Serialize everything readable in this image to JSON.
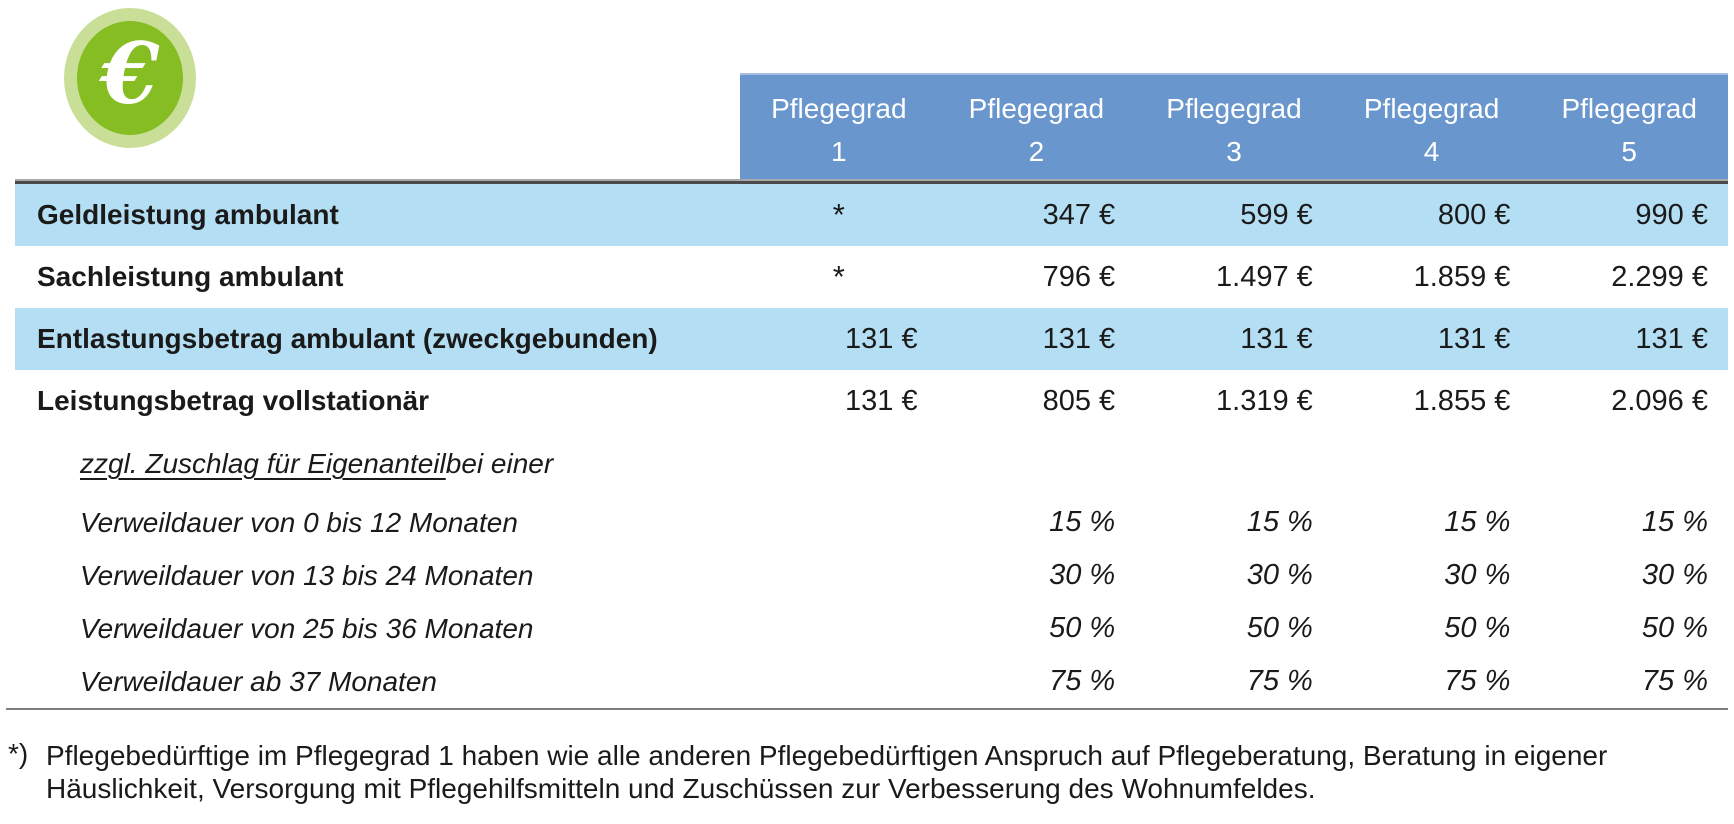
{
  "colors": {
    "header_bg": "#6996CD",
    "header_top_edge": "#A5C0E0",
    "row_highlight": "#B4DEF3",
    "divider_dark": "#4A4A4A",
    "divider_light": "#A8A8A8",
    "bottom_rule": "#7F7F7F",
    "text": "#1A1A1A",
    "header_text": "#FFFFFF",
    "icon_outer_green": "#C9DF97",
    "icon_inner_green": "#85BD22",
    "icon_symbol_color": "#FFFFFF"
  },
  "icon": {
    "symbol": "€"
  },
  "header": {
    "cells": [
      {
        "title": "Pflegegrad",
        "number": "1"
      },
      {
        "title": "Pflegegrad",
        "number": "2"
      },
      {
        "title": "Pflegegrad",
        "number": "3"
      },
      {
        "title": "Pflegegrad",
        "number": "4"
      },
      {
        "title": "Pflegegrad",
        "number": "5"
      }
    ]
  },
  "table": {
    "rows": [
      {
        "label": "Geldleistung ambulant",
        "values": [
          "*",
          "347 €",
          "599 €",
          "800 €",
          "990 €"
        ]
      },
      {
        "label": "Sachleistung ambulant",
        "values": [
          "*",
          "796 €",
          "1.497 €",
          "1.859 €",
          "2.299 €"
        ]
      },
      {
        "label": "Entlastungsbetrag ambulant (zweckgebunden)",
        "values": [
          "131 €",
          "131 €",
          "131 €",
          "131 €",
          "131 €"
        ]
      },
      {
        "label": "Leistungsbetrag vollstationär",
        "values": [
          "131 €",
          "805 €",
          "1.319 €",
          "1.855 €",
          "2.096 €"
        ]
      },
      {
        "label_underline": "zzgl. Zuschlag für Eigenanteil",
        "label_rest": " bei einer"
      },
      {
        "label": "Verweildauer von 0 bis 12 Monaten",
        "values": [
          "",
          "15 %",
          "15 %",
          "15 %",
          "15 %"
        ]
      },
      {
        "label": "Verweildauer von 13 bis 24 Monaten",
        "values": [
          "",
          "30 %",
          "30 %",
          "30 %",
          "30 %"
        ]
      },
      {
        "label": "Verweildauer von 25 bis 36 Monaten",
        "values": [
          "",
          "50 %",
          "50 %",
          "50 %",
          "50 %"
        ]
      },
      {
        "label": "Verweildauer ab 37 Monaten",
        "values": [
          "",
          "75 %",
          "75 %",
          "75 %",
          "75 %"
        ]
      }
    ]
  },
  "footnote": {
    "marker": "*)",
    "line1": "Pflegebedürftige im Pflegegrad 1 haben wie alle anderen Pflegebedürftigen Anspruch auf Pflegeberatung, Beratung in eigener",
    "line2": "Häuslichkeit, Versorgung mit Pflegehilfsmitteln und Zuschüssen zur Verbesserung des Wohnumfeldes."
  },
  "chart_data": {
    "type": "table",
    "title": "",
    "columns": [
      "",
      "Pflegegrad 1",
      "Pflegegrad 2",
      "Pflegegrad 3",
      "Pflegegrad 4",
      "Pflegegrad 5"
    ],
    "rows": [
      [
        "Geldleistung ambulant",
        "*",
        "347 €",
        "599 €",
        "800 €",
        "990 €"
      ],
      [
        "Sachleistung ambulant",
        "*",
        "796 €",
        "1.497 €",
        "1.859 €",
        "2.299 €"
      ],
      [
        "Entlastungsbetrag ambulant (zweckgebunden)",
        "131 €",
        "131 €",
        "131 €",
        "131 €",
        "131 €"
      ],
      [
        "Leistungsbetrag vollstationär",
        "131 €",
        "805 €",
        "1.319 €",
        "1.855 €",
        "2.096 €"
      ],
      [
        "zzgl. Zuschlag für Eigenanteil bei einer",
        "",
        "",
        "",
        "",
        ""
      ],
      [
        "Verweildauer von 0 bis 12 Monaten",
        "",
        "15 %",
        "15 %",
        "15 %",
        "15 %"
      ],
      [
        "Verweildauer von 13 bis 24 Monaten",
        "",
        "30 %",
        "30 %",
        "30 %",
        "30 %"
      ],
      [
        "Verweildauer von 25 bis 36 Monaten",
        "",
        "50 %",
        "50 %",
        "50 %",
        "50 %"
      ],
      [
        "Verweildauer ab 37 Monaten",
        "",
        "75 %",
        "75 %",
        "75 %",
        "75 %"
      ]
    ],
    "footnote": "*) Pflegebedürftige im Pflegegrad 1 haben wie alle anderen Pflegebedürftigen Anspruch auf Pflegeberatung, Beratung in eigener Häuslichkeit, Versorgung mit Pflegehilfsmitteln und Zuschüssen zur Verbesserung des Wohnumfeldes.",
    "layout": {
      "highlighted_rows": [
        0,
        2
      ],
      "header_style": "blue-band",
      "grid": false
    }
  }
}
